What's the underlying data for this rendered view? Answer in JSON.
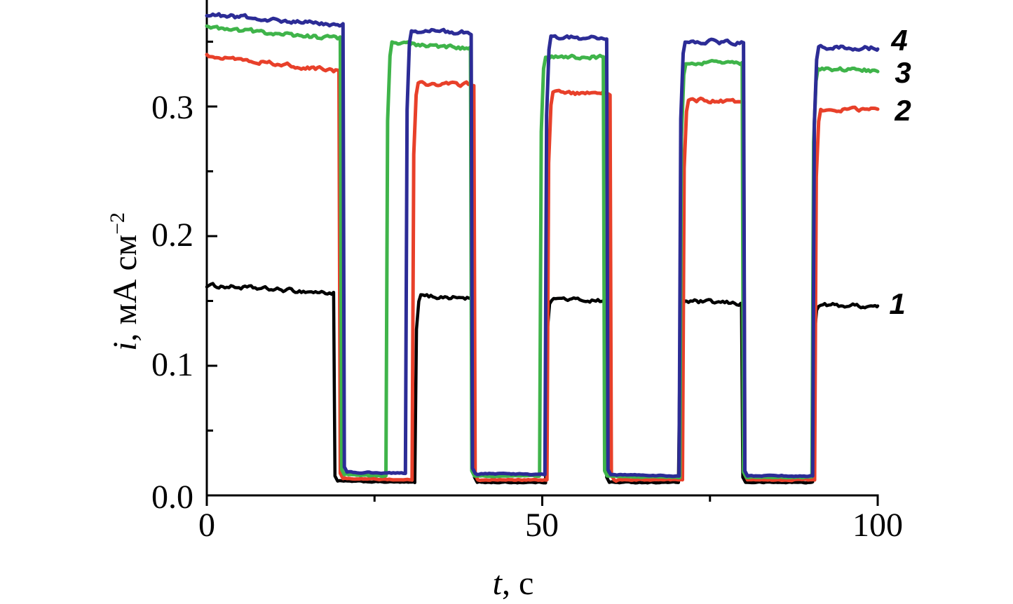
{
  "figure": {
    "background": "#ffffff",
    "xlabel": {
      "var": "t",
      "rest": ", с"
    },
    "ylabel": {
      "var": "i",
      "rest": ", мА см",
      "sup": "−2"
    },
    "x_tick_labels": [
      "0",
      "50",
      "100"
    ],
    "y_tick_labels": [
      "0.0",
      "0.1",
      "0.2",
      "0.3"
    ],
    "curve_labels": [
      "4",
      "3",
      "2",
      "1"
    ]
  },
  "chart_data": {
    "type": "line",
    "title": "",
    "xlabel": "t, с",
    "ylabel": "i, мА см−2",
    "xlim": [
      0,
      100
    ],
    "ylim": [
      0,
      0.382
    ],
    "x_major_ticks": [
      0,
      50,
      100
    ],
    "x_minor_ticks": [
      25,
      75
    ],
    "y_major_ticks": [
      0,
      0.1,
      0.2,
      0.3
    ],
    "y_minor_ticks": [
      0.05,
      0.15,
      0.25,
      0.35
    ],
    "grid": false,
    "legend_position": "curve numbers at right edge of plot",
    "segments_format": "[t_start_s, t_end_s, i_start_mA_cm2, i_end_mA_cm2] alternating light-on plateaus and light-off baselines",
    "series": [
      {
        "name": "1",
        "color": "#000000",
        "segments": [
          [
            0,
            18.9,
            0.162,
            0.156
          ],
          [
            18.9,
            31.0,
            0.011,
            0.01
          ],
          [
            31.0,
            39.7,
            0.154,
            0.152
          ],
          [
            39.7,
            50.5,
            0.01,
            0.01
          ],
          [
            50.5,
            59.4,
            0.152,
            0.15
          ],
          [
            59.4,
            70.3,
            0.01,
            0.01
          ],
          [
            70.3,
            79.7,
            0.15,
            0.148
          ],
          [
            79.7,
            90.3,
            0.01,
            0.01
          ],
          [
            90.3,
            100,
            0.147,
            0.146
          ]
        ]
      },
      {
        "name": "2",
        "color": "#e8402a",
        "segments": [
          [
            0,
            19.7,
            0.34,
            0.327
          ],
          [
            19.7,
            30.6,
            0.013,
            0.012
          ],
          [
            30.6,
            39.8,
            0.318,
            0.317
          ],
          [
            39.8,
            50.7,
            0.012,
            0.012
          ],
          [
            50.7,
            60.1,
            0.31,
            0.311
          ],
          [
            60.1,
            70.9,
            0.012,
            0.012
          ],
          [
            70.9,
            80.0,
            0.305,
            0.304
          ],
          [
            80.0,
            90.6,
            0.012,
            0.012
          ],
          [
            90.6,
            100,
            0.297,
            0.298
          ]
        ]
      },
      {
        "name": "3",
        "color": "#3fb44a",
        "segments": [
          [
            0,
            19.9,
            0.361,
            0.352
          ],
          [
            19.9,
            26.7,
            0.016,
            0.015
          ],
          [
            26.7,
            39.3,
            0.349,
            0.345
          ],
          [
            39.3,
            49.6,
            0.015,
            0.015
          ],
          [
            49.6,
            59.1,
            0.339,
            0.338
          ],
          [
            59.1,
            70.5,
            0.015,
            0.014
          ],
          [
            70.5,
            79.8,
            0.334,
            0.333
          ],
          [
            79.8,
            90.2,
            0.014,
            0.014
          ],
          [
            90.2,
            100,
            0.329,
            0.328
          ]
        ]
      },
      {
        "name": "4",
        "color": "#2c2c96",
        "segments": [
          [
            0,
            20.3,
            0.371,
            0.363
          ],
          [
            20.3,
            29.6,
            0.018,
            0.017
          ],
          [
            29.6,
            39.4,
            0.359,
            0.357
          ],
          [
            39.4,
            50.4,
            0.017,
            0.016
          ],
          [
            50.4,
            59.6,
            0.354,
            0.352
          ],
          [
            59.6,
            70.4,
            0.016,
            0.015
          ],
          [
            70.4,
            80.0,
            0.351,
            0.349
          ],
          [
            80.0,
            90.3,
            0.015,
            0.015
          ],
          [
            90.3,
            100,
            0.346,
            0.345
          ]
        ]
      }
    ]
  }
}
